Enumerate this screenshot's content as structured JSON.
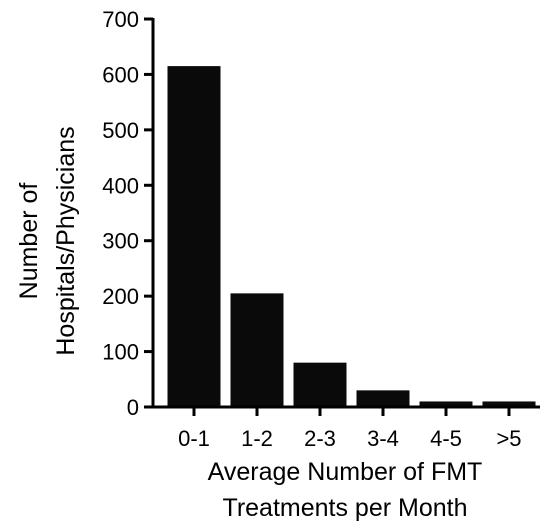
{
  "chart_data": {
    "type": "bar",
    "categories": [
      "0-1",
      "1-2",
      "2-3",
      "3-4",
      "4-5",
      ">5"
    ],
    "values": [
      615,
      205,
      80,
      30,
      10,
      10
    ],
    "xlabel": [
      "Average Number of FMT",
      "Treatments per Month"
    ],
    "ylabel": [
      "Number of",
      "Hospitals/Physicians"
    ],
    "ylim": [
      0,
      700
    ],
    "yticks": [
      0,
      100,
      200,
      300,
      400,
      500,
      600,
      700
    ],
    "grid": false,
    "bar_color": "#0a0a0a",
    "axis_color": "#000000"
  }
}
